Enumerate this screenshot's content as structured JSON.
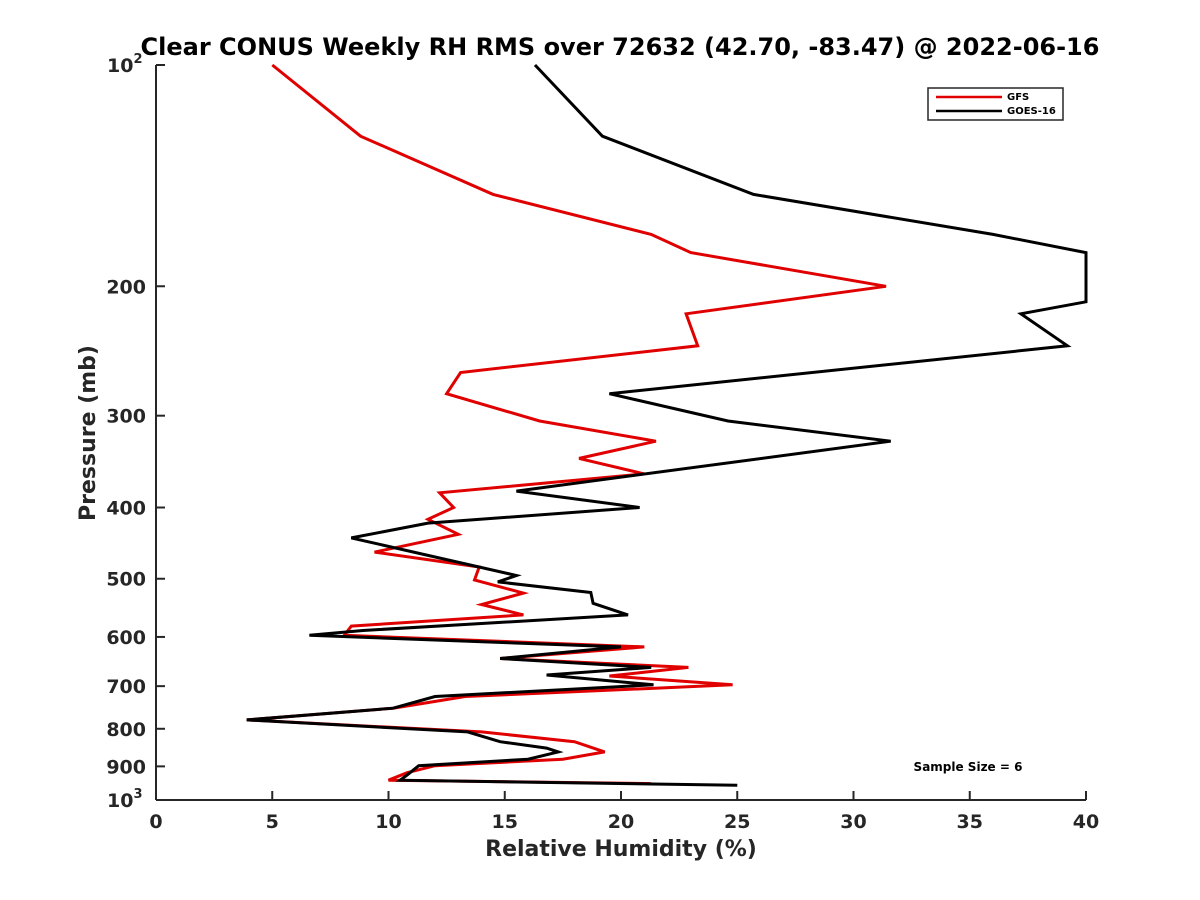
{
  "chart_data": {
    "type": "line",
    "title": "Clear CONUS Weekly RH RMS over 72632 (42.70, -83.47) @ 2022-06-16",
    "xlabel": "Relative Humidity (%)",
    "ylabel": "Pressure (mb)",
    "xlim": [
      0,
      40
    ],
    "ylim": [
      100,
      1000
    ],
    "y_scale": "log",
    "y_reversed": true,
    "grid": false,
    "legend_position": "top-right",
    "x_ticks": [
      "0",
      "5",
      "10",
      "15",
      "20",
      "25",
      "30",
      "35",
      "40"
    ],
    "y_ticks": [
      {
        "value": 100,
        "label": "10",
        "sup": "2"
      },
      {
        "value": 200,
        "label": "200",
        "sup": ""
      },
      {
        "value": 300,
        "label": "300",
        "sup": ""
      },
      {
        "value": 400,
        "label": "400",
        "sup": ""
      },
      {
        "value": 500,
        "label": "500",
        "sup": ""
      },
      {
        "value": 600,
        "label": "600",
        "sup": ""
      },
      {
        "value": 700,
        "label": "700",
        "sup": ""
      },
      {
        "value": 800,
        "label": "800",
        "sup": ""
      },
      {
        "value": 900,
        "label": "900",
        "sup": ""
      },
      {
        "value": 1000,
        "label": "10",
        "sup": "3"
      }
    ],
    "annotation": "Sample Size = 6",
    "series": [
      {
        "name": "GFS",
        "color": "#e00000",
        "points": [
          [
            5.0,
            100
          ],
          [
            8.8,
            125
          ],
          [
            14.5,
            150
          ],
          [
            21.3,
            170
          ],
          [
            23.0,
            180
          ],
          [
            31.4,
            200
          ],
          [
            22.8,
            218
          ],
          [
            23.3,
            241
          ],
          [
            13.1,
            262
          ],
          [
            12.5,
            280
          ],
          [
            16.5,
            305
          ],
          [
            21.5,
            325
          ],
          [
            18.2,
            343
          ],
          [
            21.0,
            360
          ],
          [
            12.2,
            382
          ],
          [
            12.8,
            400
          ],
          [
            11.7,
            415
          ],
          [
            13.0,
            435
          ],
          [
            9.4,
            460
          ],
          [
            13.9,
            482
          ],
          [
            13.7,
            502
          ],
          [
            15.8,
            523
          ],
          [
            14.0,
            542
          ],
          [
            15.8,
            560
          ],
          [
            8.4,
            580
          ],
          [
            8.1,
            597
          ],
          [
            21.0,
            619
          ],
          [
            14.8,
            642
          ],
          [
            22.9,
            660
          ],
          [
            19.5,
            678
          ],
          [
            24.8,
            697
          ],
          [
            13.3,
            723
          ],
          [
            10.2,
            750
          ],
          [
            3.9,
            778
          ],
          [
            14.0,
            808
          ],
          [
            18.0,
            833
          ],
          [
            19.3,
            860
          ],
          [
            17.5,
            880
          ],
          [
            12.0,
            898
          ],
          [
            10.8,
            918
          ],
          [
            10.0,
            940
          ],
          [
            21.3,
            950
          ]
        ]
      },
      {
        "name": "GOES-16",
        "color": "#000000",
        "points": [
          [
            16.3,
            100
          ],
          [
            19.2,
            125
          ],
          [
            25.7,
            150
          ],
          [
            36.0,
            170
          ],
          [
            40.0,
            180
          ],
          [
            40.0,
            210
          ],
          [
            37.2,
            218
          ],
          [
            39.2,
            241
          ],
          [
            19.5,
            280
          ],
          [
            24.6,
            305
          ],
          [
            31.6,
            325
          ],
          [
            15.5,
            380
          ],
          [
            20.8,
            400
          ],
          [
            11.7,
            420
          ],
          [
            8.4,
            440
          ],
          [
            15.5,
            495
          ],
          [
            14.7,
            505
          ],
          [
            18.7,
            522
          ],
          [
            18.8,
            540
          ],
          [
            20.3,
            560
          ],
          [
            8.9,
            588
          ],
          [
            6.6,
            597
          ],
          [
            20.0,
            619
          ],
          [
            14.8,
            642
          ],
          [
            21.3,
            660
          ],
          [
            16.8,
            676
          ],
          [
            21.4,
            697
          ],
          [
            12.0,
            723
          ],
          [
            10.2,
            750
          ],
          [
            3.9,
            778
          ],
          [
            13.4,
            808
          ],
          [
            14.8,
            833
          ],
          [
            16.8,
            850
          ],
          [
            17.3,
            860
          ],
          [
            16.0,
            880
          ],
          [
            11.3,
            898
          ],
          [
            10.8,
            925
          ],
          [
            10.5,
            940
          ],
          [
            25.0,
            955
          ]
        ]
      }
    ]
  }
}
